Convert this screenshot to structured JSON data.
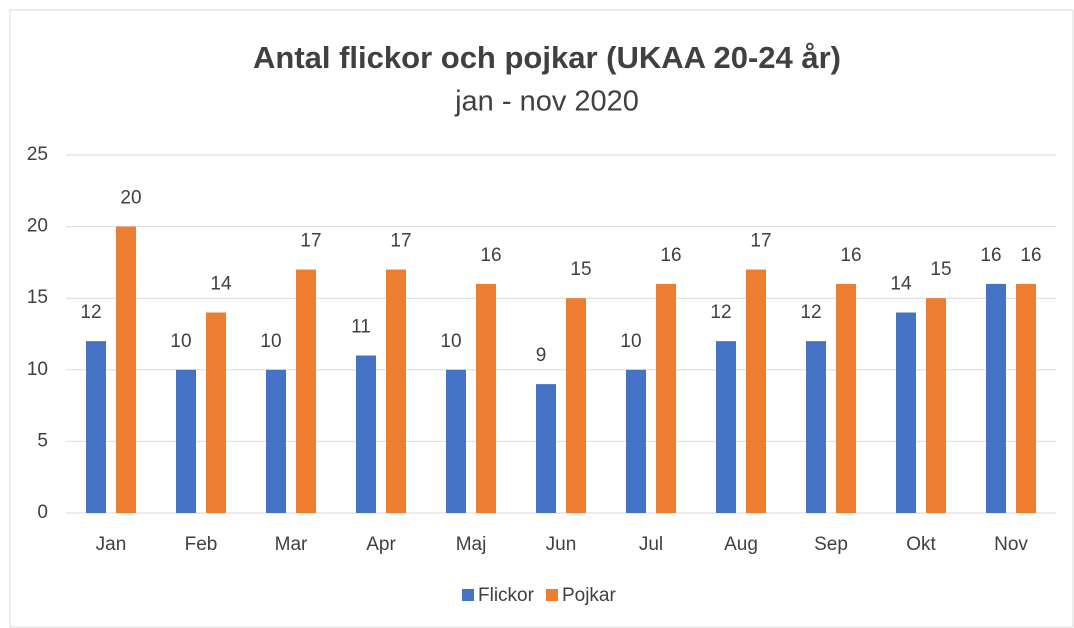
{
  "chart_data": {
    "type": "bar",
    "title": "Antal flickor och pojkar (UKAA 20-24 år)",
    "subtitle": "jan - nov 2020",
    "categories": [
      "Jan",
      "Feb",
      "Mar",
      "Apr",
      "Maj",
      "Jun",
      "Jul",
      "Aug",
      "Sep",
      "Okt",
      "Nov"
    ],
    "series": [
      {
        "name": "Flickor",
        "color": "#4472c4",
        "values": [
          12,
          10,
          10,
          11,
          10,
          9,
          10,
          12,
          12,
          14,
          16
        ]
      },
      {
        "name": "Pojkar",
        "color": "#ed7d31",
        "values": [
          20,
          14,
          17,
          17,
          16,
          15,
          16,
          17,
          16,
          15,
          16
        ]
      }
    ],
    "ylim": [
      0,
      25
    ],
    "yticks": [
      0,
      5,
      10,
      15,
      20,
      25
    ],
    "grid": true,
    "legend": "bottom"
  }
}
